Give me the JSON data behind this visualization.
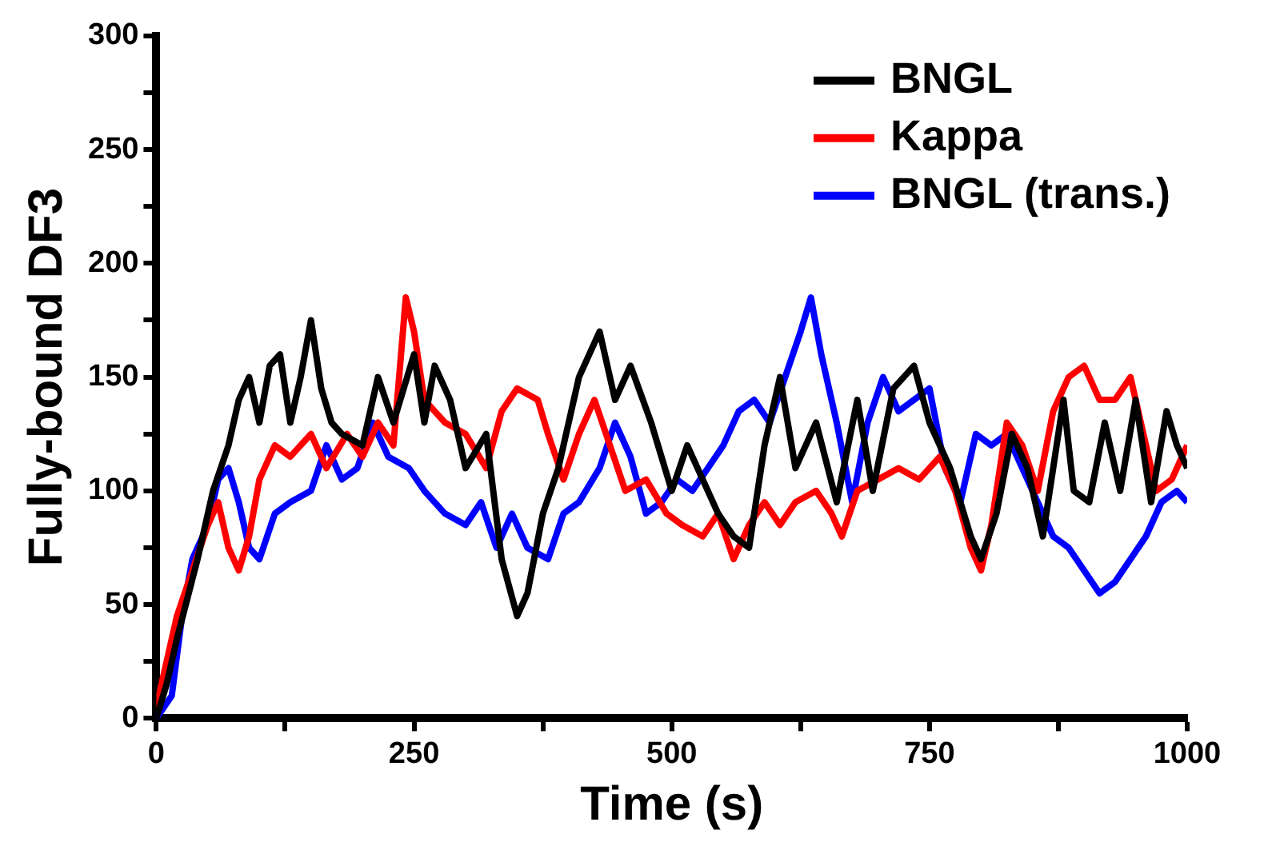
{
  "chart_data": {
    "type": "line",
    "xlabel": "Time (s)",
    "ylabel": "Fully-bound DF3",
    "xlim": [
      0,
      1000
    ],
    "xticks": [
      0,
      {
        "value": 125,
        "label": null
      },
      250,
      {
        "value": 375,
        "label": null
      },
      500,
      {
        "value": 625,
        "label": null
      },
      750,
      {
        "value": 875,
        "label": null
      },
      1000
    ],
    "ylim": [
      0,
      300
    ],
    "yticks": [
      0,
      {
        "value": 25,
        "label": null
      },
      50,
      {
        "value": 75,
        "label": null
      },
      100,
      {
        "value": 125,
        "label": null
      },
      150,
      {
        "value": 175,
        "label": null
      },
      200,
      {
        "value": 225,
        "label": null
      },
      250,
      {
        "value": 275,
        "label": null
      },
      300
    ],
    "grid": false,
    "legend": "top right",
    "marker": "none",
    "line_style": "solid",
    "series": [
      {
        "name": "BNGL",
        "color": "#000000",
        "x": [
          0,
          10,
          20,
          40,
          55,
          70,
          80,
          90,
          100,
          110,
          120,
          130,
          140,
          150,
          160,
          170,
          180,
          200,
          215,
          230,
          250,
          260,
          270,
          285,
          300,
          320,
          335,
          350,
          360,
          375,
          390,
          410,
          430,
          445,
          460,
          480,
          500,
          515,
          530,
          545,
          560,
          575,
          590,
          605,
          620,
          640,
          660,
          680,
          695,
          715,
          735,
          750,
          770,
          790,
          800,
          815,
          830,
          845,
          860,
          880,
          890,
          905,
          920,
          935,
          950,
          965,
          980,
          990,
          1000
        ],
        "values": [
          0,
          15,
          35,
          70,
          100,
          120,
          140,
          150,
          130,
          155,
          160,
          130,
          150,
          175,
          145,
          130,
          125,
          120,
          150,
          130,
          160,
          130,
          155,
          140,
          110,
          125,
          70,
          45,
          55,
          90,
          110,
          150,
          170,
          140,
          155,
          130,
          100,
          120,
          105,
          90,
          80,
          75,
          120,
          150,
          110,
          130,
          95,
          140,
          100,
          145,
          155,
          130,
          110,
          80,
          70,
          90,
          125,
          110,
          80,
          140,
          100,
          95,
          130,
          100,
          140,
          95,
          135,
          120,
          110
        ]
      },
      {
        "name": "Kappa",
        "color": "#ff0000",
        "x": [
          0,
          10,
          20,
          35,
          50,
          60,
          70,
          80,
          90,
          100,
          115,
          130,
          150,
          165,
          185,
          200,
          215,
          230,
          242,
          250,
          260,
          280,
          300,
          320,
          335,
          350,
          370,
          380,
          395,
          410,
          425,
          440,
          455,
          475,
          495,
          510,
          530,
          545,
          560,
          575,
          590,
          605,
          620,
          640,
          655,
          665,
          680,
          700,
          720,
          740,
          760,
          775,
          790,
          800,
          810,
          825,
          840,
          855,
          870,
          885,
          900,
          915,
          930,
          945,
          955,
          970,
          985,
          1000
        ],
        "values": [
          5,
          25,
          45,
          65,
          85,
          95,
          75,
          65,
          80,
          105,
          120,
          115,
          125,
          110,
          125,
          115,
          130,
          120,
          185,
          170,
          140,
          130,
          125,
          110,
          135,
          145,
          140,
          125,
          105,
          125,
          140,
          120,
          100,
          105,
          90,
          85,
          80,
          90,
          70,
          85,
          95,
          85,
          95,
          100,
          90,
          80,
          100,
          105,
          110,
          105,
          115,
          100,
          75,
          65,
          85,
          130,
          120,
          100,
          135,
          150,
          155,
          140,
          140,
          150,
          130,
          100,
          105,
          120
        ]
      },
      {
        "name": "BNGL (trans.)",
        "color": "#0000ff",
        "x": [
          0,
          15,
          25,
          35,
          50,
          60,
          70,
          80,
          90,
          100,
          115,
          130,
          150,
          165,
          180,
          195,
          210,
          225,
          245,
          260,
          280,
          300,
          315,
          330,
          345,
          360,
          380,
          395,
          410,
          430,
          445,
          460,
          475,
          490,
          505,
          520,
          535,
          550,
          565,
          580,
          595,
          610,
          625,
          635,
          645,
          660,
          675,
          690,
          705,
          720,
          735,
          750,
          765,
          780,
          795,
          810,
          825,
          840,
          855,
          870,
          885,
          900,
          915,
          930,
          945,
          960,
          975,
          990,
          1000
        ],
        "values": [
          0,
          10,
          45,
          70,
          85,
          105,
          110,
          95,
          75,
          70,
          90,
          95,
          100,
          120,
          105,
          110,
          130,
          115,
          110,
          100,
          90,
          85,
          95,
          75,
          90,
          75,
          70,
          90,
          95,
          110,
          130,
          115,
          90,
          95,
          105,
          100,
          110,
          120,
          135,
          140,
          130,
          150,
          170,
          185,
          160,
          130,
          95,
          130,
          150,
          135,
          140,
          145,
          110,
          95,
          125,
          120,
          125,
          110,
          95,
          80,
          75,
          65,
          55,
          60,
          70,
          80,
          95,
          100,
          95
        ]
      }
    ]
  }
}
